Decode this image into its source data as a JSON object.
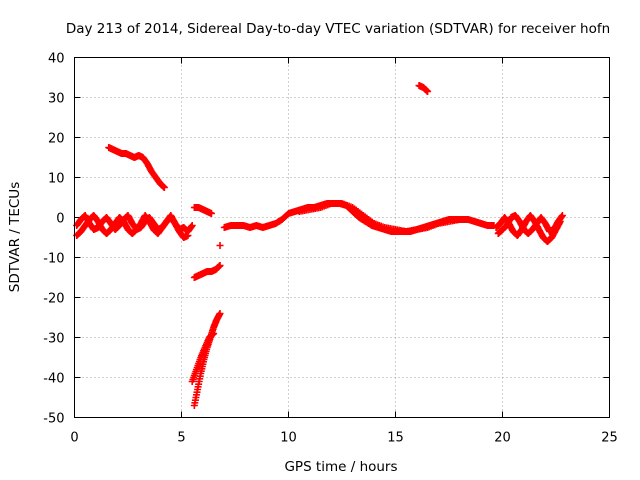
{
  "chart_data": {
    "type": "scatter",
    "title": "Day 213 of 2014, Sidereal Day-to-day VTEC variation (SDTVAR) for receiver hofn",
    "xlabel": "GPS time / hours",
    "ylabel": "SDTVAR / TECUs",
    "xlim": [
      0,
      25
    ],
    "ylim": [
      -50,
      40
    ],
    "xticks": [
      0,
      5,
      10,
      15,
      20,
      25
    ],
    "yticks": [
      -50,
      -40,
      -30,
      -20,
      -10,
      0,
      10,
      20,
      30,
      40
    ],
    "grid": true,
    "marker": "+",
    "color": "#ff0000",
    "series": [
      {
        "name": "SDTVAR",
        "segments": [
          {
            "x": [
              0.1,
              0.3,
              0.5,
              0.7,
              0.9,
              1.1,
              1.3,
              1.5,
              1.7,
              1.9,
              2.1,
              2.3,
              2.5,
              2.7,
              2.9,
              3.1,
              3.3,
              3.5,
              3.7,
              3.9,
              4.1,
              4.3,
              4.5,
              4.7,
              4.9,
              5.1,
              5.3,
              5.5
            ],
            "y": [
              -2.0,
              -0.5,
              0.5,
              -1.5,
              -3.0,
              -2.5,
              -1.0,
              0.0,
              -1.5,
              -3.0,
              -2.0,
              -0.5,
              0.5,
              -1.5,
              -3.0,
              -2.5,
              -1.0,
              0.0,
              -1.5,
              -3.0,
              -2.5,
              -1.0,
              0.0,
              -1.5,
              -3.0,
              -2.5,
              -3.5,
              -2.0
            ]
          },
          {
            "x": [
              0.1,
              0.3,
              0.5,
              0.7,
              0.9,
              1.1,
              1.3,
              1.5,
              1.7,
              1.9,
              2.1,
              2.3,
              2.5,
              2.7,
              2.9,
              3.1,
              3.3,
              3.5,
              3.7,
              3.9,
              4.1,
              4.3,
              4.5,
              4.7,
              4.9,
              5.1,
              5.3
            ],
            "y": [
              -4.5,
              -3.5,
              -2.0,
              -0.5,
              0.5,
              -1.0,
              -3.0,
              -4.0,
              -3.0,
              -1.5,
              0.0,
              -1.0,
              -3.0,
              -4.0,
              -3.0,
              -1.5,
              0.5,
              -1.0,
              -3.0,
              -4.0,
              -2.5,
              -1.0,
              0.5,
              -1.5,
              -3.5,
              -5.0,
              -4.5
            ]
          },
          {
            "x": [
              1.6,
              1.8,
              2.0,
              2.2,
              2.4,
              2.6,
              2.8,
              3.0,
              3.2,
              3.4,
              3.6,
              3.8,
              4.0,
              4.2
            ],
            "y": [
              17.5,
              17.0,
              16.5,
              16.0,
              16.0,
              15.5,
              15.0,
              15.5,
              15.0,
              13.5,
              11.5,
              10.0,
              8.5,
              7.5
            ]
          },
          {
            "x": [
              5.6,
              5.8,
              6.0,
              6.2,
              6.4
            ],
            "y": [
              2.5,
              2.5,
              2.0,
              1.5,
              1.0
            ]
          },
          {
            "x": [
              5.6,
              5.8,
              6.0,
              6.2,
              6.4,
              6.6,
              6.8
            ],
            "y": [
              -15.0,
              -14.5,
              -14.0,
              -13.5,
              -13.5,
              -13.0,
              -12.0
            ]
          },
          {
            "x": [
              6.8
            ],
            "y": [
              -7.0
            ]
          },
          {
            "x": [
              5.6,
              5.75,
              5.9,
              6.05,
              6.2,
              6.35,
              6.5,
              6.65,
              6.8
            ],
            "y": [
              -47.0,
              -43.0,
              -39.0,
              -35.5,
              -32.5,
              -30.0,
              -27.5,
              -25.5,
              -24.0
            ]
          },
          {
            "x": [
              5.5,
              5.7,
              5.9,
              6.1,
              6.3,
              6.5
            ],
            "y": [
              -41.0,
              -38.0,
              -35.0,
              -32.5,
              -30.0,
              -29.0
            ]
          },
          {
            "x": [
              7.0,
              7.3,
              7.6,
              7.9,
              8.2,
              8.5,
              8.8,
              9.1,
              9.4,
              9.7,
              10.0,
              10.3,
              10.6,
              10.9,
              11.2,
              11.5,
              11.8,
              12.1,
              12.4,
              12.7,
              13.0,
              13.3,
              13.6,
              13.9,
              14.2,
              14.5,
              14.8,
              15.1,
              15.4,
              15.7,
              16.0,
              16.3,
              16.6,
              16.9,
              17.2,
              17.5,
              17.8,
              18.1,
              18.4,
              18.7,
              19.0,
              19.3,
              19.6
            ],
            "y": [
              -2.5,
              -2.0,
              -2.0,
              -2.0,
              -2.5,
              -2.0,
              -2.5,
              -2.0,
              -1.5,
              -0.5,
              1.0,
              1.5,
              2.0,
              2.5,
              2.5,
              3.0,
              3.5,
              3.5,
              3.5,
              3.0,
              1.5,
              0.0,
              -1.0,
              -2.0,
              -2.5,
              -3.0,
              -3.5,
              -3.5,
              -3.5,
              -3.5,
              -3.0,
              -2.5,
              -2.0,
              -1.5,
              -1.0,
              -0.5,
              -0.5,
              -0.5,
              -0.5,
              -1.0,
              -1.5,
              -2.0,
              -2.0
            ]
          },
          {
            "x": [
              10.5,
              11.0,
              11.5,
              12.0,
              12.5,
              13.0,
              13.5,
              14.0,
              14.5,
              15.0,
              15.5,
              16.0,
              16.5,
              17.0,
              17.5,
              18.0
            ],
            "y": [
              1.5,
              2.0,
              2.5,
              3.5,
              3.5,
              2.5,
              0.5,
              -1.5,
              -2.5,
              -3.0,
              -3.5,
              -3.0,
              -2.5,
              -1.5,
              -1.0,
              -0.5
            ]
          },
          {
            "x": [
              16.1,
              16.3,
              16.5
            ],
            "y": [
              33.0,
              32.5,
              31.5
            ]
          },
          {
            "x": [
              19.7,
              19.9,
              20.1,
              20.3,
              20.5,
              20.7,
              20.9,
              21.1,
              21.3,
              21.5,
              21.7,
              21.9,
              22.1,
              22.3,
              22.5,
              22.7
            ],
            "y": [
              -2.5,
              -1.5,
              0.0,
              -1.5,
              -3.5,
              -4.5,
              -3.0,
              -1.0,
              0.5,
              -1.0,
              -3.0,
              -5.0,
              -6.0,
              -5.0,
              -3.0,
              -1.0
            ]
          },
          {
            "x": [
              19.8,
              20.0,
              20.2,
              20.4,
              20.6,
              20.8,
              21.0,
              21.2,
              21.4,
              21.6,
              21.8,
              22.0,
              22.2,
              22.4,
              22.6,
              22.8
            ],
            "y": [
              -4.0,
              -3.0,
              -2.0,
              0.0,
              0.5,
              -1.0,
              -3.0,
              -4.0,
              -3.0,
              -1.5,
              0.0,
              -1.5,
              -3.5,
              -3.0,
              -1.0,
              0.5
            ]
          }
        ]
      }
    ]
  }
}
